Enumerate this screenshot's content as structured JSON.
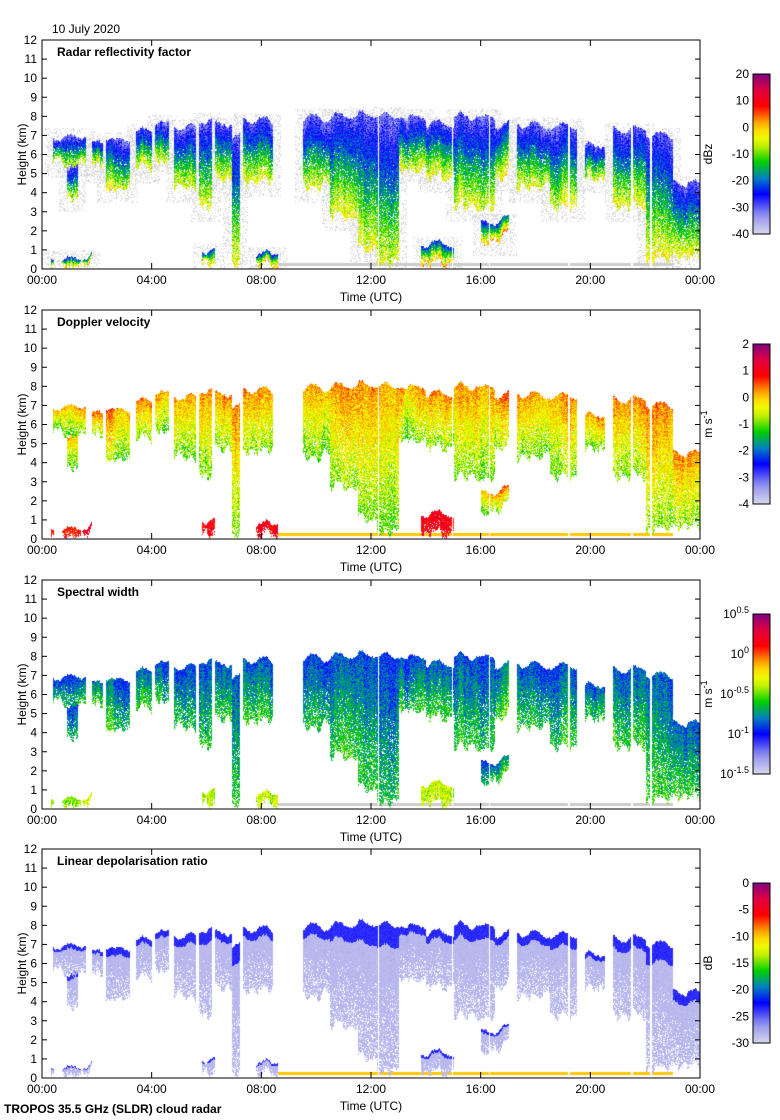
{
  "date": "10 July 2020",
  "footer": "TROPOS 35.5 GHz (SLDR) cloud radar",
  "chart_data": [
    {
      "type": "heatmap",
      "title": "Radar reflectivity factor",
      "xlabel": "Time (UTC)",
      "ylabel": "Height (km)",
      "xlim": [
        0,
        24
      ],
      "ylim": [
        0,
        12
      ],
      "xticks": [
        "00:00",
        "04:00",
        "08:00",
        "12:00",
        "16:00",
        "20:00",
        "00:00"
      ],
      "yticks": [
        "0",
        "1",
        "2",
        "3",
        "4",
        "5",
        "6",
        "7",
        "8",
        "9",
        "10",
        "11",
        "12"
      ],
      "colorbar": {
        "label": "dBz",
        "range": [
          -40,
          20
        ],
        "ticks": [
          "-40",
          "-30",
          "-20",
          "-10",
          "0",
          "10",
          "20"
        ]
      },
      "profile": "reflectivity"
    },
    {
      "type": "heatmap",
      "title": "Doppler velocity",
      "xlabel": "Time (UTC)",
      "ylabel": "Height (km)",
      "xlim": [
        0,
        24
      ],
      "ylim": [
        0,
        12
      ],
      "xticks": [
        "00:00",
        "04:00",
        "08:00",
        "12:00",
        "16:00",
        "20:00",
        "00:00"
      ],
      "yticks": [
        "0",
        "1",
        "2",
        "3",
        "4",
        "5",
        "6",
        "7",
        "8",
        "9",
        "10",
        "11",
        "12"
      ],
      "colorbar": {
        "label": "m s^-1",
        "range": [
          -4,
          2
        ],
        "ticks": [
          "-4",
          "-3",
          "-2",
          "-1",
          "0",
          "1",
          "2"
        ]
      },
      "profile": "velocity"
    },
    {
      "type": "heatmap",
      "title": "Spectral width",
      "xlabel": "Time (UTC)",
      "ylabel": "Height (km)",
      "xlim": [
        0,
        24
      ],
      "ylim": [
        0,
        12
      ],
      "xticks": [
        "00:00",
        "04:00",
        "08:00",
        "12:00",
        "16:00",
        "20:00",
        "00:00"
      ],
      "yticks": [
        "0",
        "1",
        "2",
        "3",
        "4",
        "5",
        "6",
        "7",
        "8",
        "9",
        "10",
        "11",
        "12"
      ],
      "colorbar": {
        "label": "m s^-1",
        "range": [
          -1.5,
          0.5
        ],
        "scale": "log10",
        "ticks": [
          "10^-1.5",
          "10^-1",
          "10^-0.5",
          "10^0",
          "10^0.5"
        ]
      },
      "profile": "width"
    },
    {
      "type": "heatmap",
      "title": "Linear depolarisation ratio",
      "xlabel": "Time (UTC)",
      "ylabel": "Height (km)",
      "xlim": [
        0,
        24
      ],
      "ylim": [
        0,
        12
      ],
      "xticks": [
        "00:00",
        "04:00",
        "08:00",
        "12:00",
        "16:00",
        "20:00",
        "00:00"
      ],
      "yticks": [
        "0",
        "1",
        "2",
        "3",
        "4",
        "5",
        "6",
        "7",
        "8",
        "9",
        "10",
        "11",
        "12"
      ],
      "colorbar": {
        "label": "dB",
        "range": [
          -30,
          0
        ],
        "ticks": [
          "-30",
          "-25",
          "-20",
          "-15",
          "-10",
          "-5",
          "0"
        ]
      },
      "profile": "ldr"
    }
  ],
  "cloud_segments_hours_km": [
    [
      0.4,
      1.6,
      7.0,
      5.3
    ],
    [
      0.9,
      1.3,
      5.5,
      3.5
    ],
    [
      1.8,
      2.2,
      6.5,
      5.0
    ],
    [
      2.3,
      3.2,
      6.8,
      4.0
    ],
    [
      3.4,
      4.0,
      7.2,
      5.0
    ],
    [
      4.1,
      4.6,
      7.7,
      5.5
    ],
    [
      4.8,
      5.6,
      7.5,
      4.0
    ],
    [
      5.7,
      6.2,
      7.8,
      3.0
    ],
    [
      6.3,
      6.9,
      7.6,
      4.5
    ],
    [
      6.9,
      7.2,
      7.0,
      0.0
    ],
    [
      7.3,
      8.4,
      7.8,
      4.3
    ],
    [
      9.5,
      10.5,
      8.0,
      4.0
    ],
    [
      10.5,
      11.5,
      8.0,
      2.5
    ],
    [
      11.5,
      12.2,
      8.1,
      0.8
    ],
    [
      12.2,
      13.0,
      8.1,
      0.1
    ],
    [
      13.0,
      14.0,
      8.0,
      5.0
    ],
    [
      14.0,
      15.0,
      7.6,
      4.5
    ],
    [
      15.0,
      16.5,
      8.0,
      3.0
    ],
    [
      16.5,
      17.0,
      7.5,
      4.5
    ],
    [
      17.3,
      18.5,
      7.6,
      4.0
    ],
    [
      18.5,
      19.5,
      7.5,
      3.0
    ],
    [
      19.8,
      20.5,
      6.5,
      4.5
    ],
    [
      20.8,
      22.0,
      7.3,
      3.0
    ],
    [
      22.0,
      23.0,
      7.0,
      0.2
    ],
    [
      23.0,
      24.0,
      4.5,
      0.4
    ],
    [
      0.3,
      1.8,
      0.6,
      0.0
    ],
    [
      5.8,
      6.3,
      1.0,
      0.0
    ],
    [
      7.8,
      8.6,
      0.8,
      0.0
    ],
    [
      13.8,
      15.0,
      1.3,
      0.0
    ],
    [
      16.0,
      17.0,
      2.5,
      1.2
    ]
  ],
  "colors": {
    "frame": "#000000",
    "clutter": "#cccccc",
    "low": "#d8d8ec",
    "high": "#800080"
  }
}
